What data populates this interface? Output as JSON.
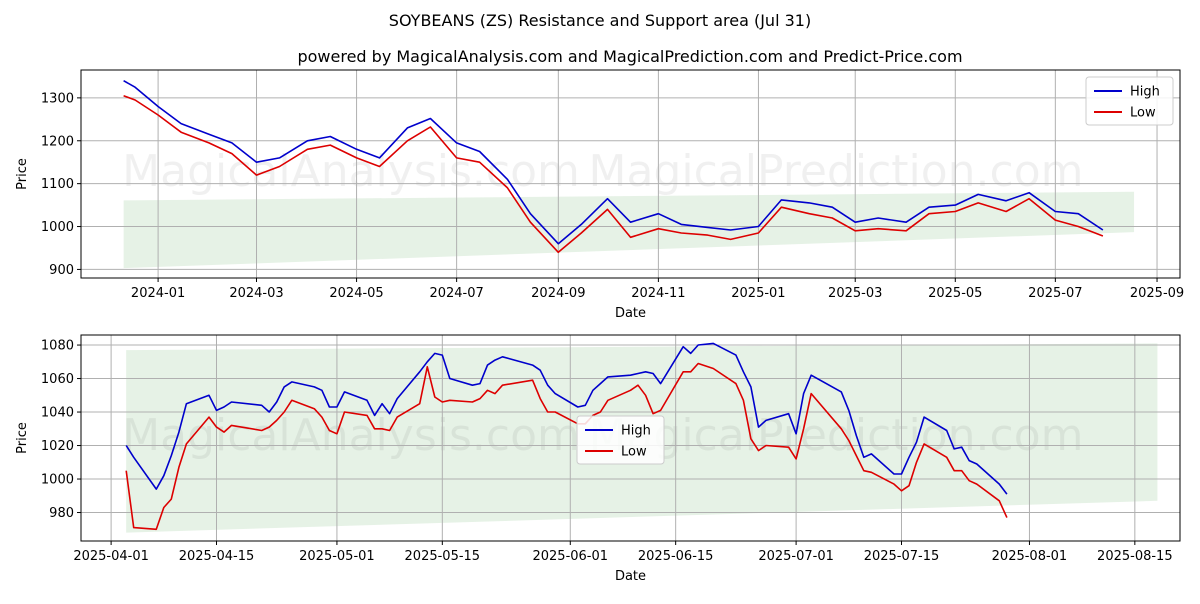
{
  "title": "SOYBEANS (ZS) Resistance and Support area (Jul 31)",
  "subtitle": "powered by MagicalAnalysis.com and MagicalPrediction.com and Predict-Price.com",
  "watermarks": [
    "MagicalAnalysis.com",
    "MagicalPrediction.com"
  ],
  "colors": {
    "high": "#0000cc",
    "low": "#dd0000",
    "band": "#d8ebd8"
  },
  "chart_data": [
    {
      "type": "line",
      "xlabel": "Date",
      "ylabel": "Price",
      "xlim": [
        "2023-11-15",
        "2025-09-15"
      ],
      "ylim": [
        880,
        1365
      ],
      "grid": true,
      "legend": "top-right",
      "x_ticks": [
        "2024-01",
        "2024-03",
        "2024-05",
        "2024-07",
        "2024-09",
        "2024-11",
        "2025-01",
        "2025-03",
        "2025-05",
        "2025-07",
        "2025-09"
      ],
      "y_ticks": [
        900,
        1000,
        1100,
        1200,
        1300
      ],
      "band": {
        "x": [
          "2023-12-11",
          "2025-08-18"
        ],
        "upper": [
          1061,
          1081
        ],
        "lower": [
          903,
          987
        ]
      },
      "dates": [
        "2023-12-11",
        "2023-12-18",
        "2024-01-01",
        "2024-01-15",
        "2024-02-01",
        "2024-02-15",
        "2024-03-01",
        "2024-03-15",
        "2024-04-01",
        "2024-04-15",
        "2024-05-01",
        "2024-05-15",
        "2024-06-01",
        "2024-06-15",
        "2024-07-01",
        "2024-07-15",
        "2024-08-01",
        "2024-08-15",
        "2024-09-01",
        "2024-09-15",
        "2024-10-01",
        "2024-10-15",
        "2024-11-01",
        "2024-11-15",
        "2024-12-01",
        "2024-12-15",
        "2025-01-01",
        "2025-01-15",
        "2025-02-01",
        "2025-02-15",
        "2025-03-01",
        "2025-03-15",
        "2025-04-01",
        "2025-04-15",
        "2025-05-01",
        "2025-05-15",
        "2025-06-01",
        "2025-06-15",
        "2025-07-01",
        "2025-07-15",
        "2025-07-30"
      ],
      "series": [
        {
          "name": "High",
          "values": [
            1340,
            1325,
            1280,
            1240,
            1215,
            1195,
            1150,
            1160,
            1200,
            1210,
            1180,
            1160,
            1230,
            1252,
            1195,
            1175,
            1110,
            1030,
            960,
            1005,
            1065,
            1010,
            1030,
            1005,
            998,
            992,
            1000,
            1062,
            1055,
            1045,
            1010,
            1020,
            1010,
            1045,
            1050,
            1075,
            1060,
            1079,
            1035,
            1030,
            992
          ]
        },
        {
          "name": "Low",
          "values": [
            1305,
            1295,
            1260,
            1220,
            1195,
            1170,
            1120,
            1140,
            1180,
            1190,
            1160,
            1140,
            1200,
            1232,
            1160,
            1150,
            1090,
            1010,
            940,
            985,
            1040,
            975,
            995,
            985,
            980,
            970,
            985,
            1045,
            1030,
            1020,
            990,
            995,
            990,
            1030,
            1035,
            1055,
            1035,
            1065,
            1015,
            1000,
            978
          ]
        }
      ]
    },
    {
      "type": "line",
      "xlabel": "Date",
      "ylabel": "Price",
      "xlim": [
        "2025-03-28",
        "2025-08-21"
      ],
      "ylim": [
        963,
        1086
      ],
      "grid": true,
      "legend": "center",
      "x_ticks": [
        "2025-04-01",
        "2025-04-15",
        "2025-05-01",
        "2025-05-15",
        "2025-06-01",
        "2025-06-15",
        "2025-07-01",
        "2025-07-15",
        "2025-08-01",
        "2025-08-15"
      ],
      "y_ticks": [
        980,
        1000,
        1020,
        1040,
        1060,
        1080
      ],
      "band": {
        "x": [
          "2025-04-03",
          "2025-08-18"
        ],
        "upper": [
          1077,
          1081
        ],
        "lower": [
          968,
          987
        ]
      },
      "dates": [
        "2025-04-03",
        "2025-04-04",
        "2025-04-07",
        "2025-04-08",
        "2025-04-09",
        "2025-04-10",
        "2025-04-11",
        "2025-04-14",
        "2025-04-15",
        "2025-04-16",
        "2025-04-17",
        "2025-04-21",
        "2025-04-22",
        "2025-04-23",
        "2025-04-24",
        "2025-04-25",
        "2025-04-28",
        "2025-04-29",
        "2025-04-30",
        "2025-05-01",
        "2025-05-02",
        "2025-05-05",
        "2025-05-06",
        "2025-05-07",
        "2025-05-08",
        "2025-05-09",
        "2025-05-12",
        "2025-05-13",
        "2025-05-14",
        "2025-05-15",
        "2025-05-16",
        "2025-05-19",
        "2025-05-20",
        "2025-05-21",
        "2025-05-22",
        "2025-05-23",
        "2025-05-27",
        "2025-05-28",
        "2025-05-29",
        "2025-05-30",
        "2025-06-02",
        "2025-06-03",
        "2025-06-04",
        "2025-06-05",
        "2025-06-06",
        "2025-06-09",
        "2025-06-10",
        "2025-06-11",
        "2025-06-12",
        "2025-06-13",
        "2025-06-16",
        "2025-06-17",
        "2025-06-18",
        "2025-06-20",
        "2025-06-23",
        "2025-06-24",
        "2025-06-25",
        "2025-06-26",
        "2025-06-27",
        "2025-06-30",
        "2025-07-01",
        "2025-07-02",
        "2025-07-03",
        "2025-07-07",
        "2025-07-08",
        "2025-07-09",
        "2025-07-10",
        "2025-07-11",
        "2025-07-14",
        "2025-07-15",
        "2025-07-16",
        "2025-07-17",
        "2025-07-18",
        "2025-07-21",
        "2025-07-22",
        "2025-07-23",
        "2025-07-24",
        "2025-07-25",
        "2025-07-28",
        "2025-07-29"
      ],
      "series": [
        {
          "name": "High",
          "values": [
            1020,
            1013,
            994,
            1002,
            1014,
            1028,
            1045,
            1050,
            1041,
            1043,
            1046,
            1044,
            1040,
            1046,
            1055,
            1058,
            1055,
            1053,
            1043,
            1043,
            1052,
            1047,
            1038,
            1045,
            1039,
            1048,
            1064,
            1070,
            1075,
            1074,
            1060,
            1056,
            1057,
            1068,
            1071,
            1073,
            1068,
            1065,
            1056,
            1051,
            1043,
            1044,
            1053,
            1057,
            1061,
            1062,
            1063,
            1064,
            1063,
            1057,
            1079,
            1075,
            1080,
            1081,
            1074,
            1064,
            1055,
            1031,
            1035,
            1039,
            1027,
            1051,
            1062,
            1052,
            1041,
            1026,
            1013,
            1015,
            1003,
            1003,
            1013,
            1022,
            1037,
            1029,
            1018,
            1019,
            1011,
            1009,
            997,
            991
          ]
        },
        {
          "name": "Low",
          "values": [
            1005,
            971,
            970,
            983,
            988,
            1007,
            1021,
            1037,
            1031,
            1028,
            1032,
            1029,
            1031,
            1035,
            1040,
            1047,
            1042,
            1037,
            1029,
            1027,
            1040,
            1038,
            1030,
            1030,
            1029,
            1037,
            1045,
            1067,
            1049,
            1046,
            1047,
            1046,
            1048,
            1053,
            1051,
            1056,
            1059,
            1048,
            1040,
            1040,
            1033,
            1033,
            1038,
            1040,
            1047,
            1053,
            1056,
            1050,
            1039,
            1041,
            1064,
            1064,
            1069,
            1066,
            1057,
            1047,
            1024,
            1017,
            1020,
            1019,
            1012,
            1030,
            1051,
            1030,
            1023,
            1014,
            1005,
            1004,
            997,
            993,
            996,
            1010,
            1021,
            1013,
            1005,
            1005,
            999,
            997,
            987,
            977
          ]
        }
      ]
    }
  ]
}
